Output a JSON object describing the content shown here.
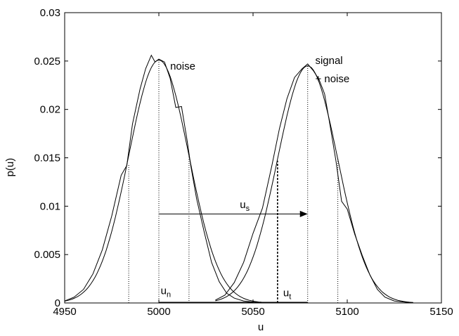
{
  "chart_data": {
    "type": "line",
    "title": "",
    "xlabel": "u",
    "ylabel": "p(u)",
    "xlim": [
      4950,
      5150
    ],
    "ylim": [
      0,
      0.03
    ],
    "xticks": [
      4950,
      5000,
      5050,
      5100,
      5150
    ],
    "yticks": [
      0,
      0.005,
      0.01,
      0.015,
      0.02,
      0.025,
      0.03
    ],
    "xtick_labels": [
      "4950",
      "5000",
      "5050",
      "5100",
      "5150"
    ],
    "ytick_labels": [
      "0",
      "0.005",
      "0.01",
      "0.015",
      "0.02",
      "0.025",
      "0.03"
    ],
    "grid": false,
    "series": [
      {
        "name": "",
        "style": "gaussian-fit",
        "mean": 5000,
        "sigma": 16,
        "peak": 0.0251,
        "x_range": [
          4950,
          5055
        ]
      },
      {
        "name": "",
        "style": "empirical",
        "x": [
          4950,
          4955,
          4960,
          4965,
          4970,
          4975,
          4980,
          4983,
          4986,
          4990,
          4993,
          4996,
          4998,
          5000,
          5003,
          5006,
          5009,
          5012,
          5015,
          5017,
          5020,
          5024,
          5028,
          5032,
          5036,
          5040,
          5045,
          5050,
          5055
        ],
        "y": [
          0.0002,
          0.0006,
          0.0014,
          0.003,
          0.0055,
          0.009,
          0.0132,
          0.0142,
          0.0185,
          0.0221,
          0.0242,
          0.0256,
          0.0249,
          0.0252,
          0.0249,
          0.0232,
          0.0202,
          0.0203,
          0.0168,
          0.0141,
          0.0108,
          0.0074,
          0.0042,
          0.0022,
          0.001,
          0.0005,
          0.0002,
          0.0001,
          0.0
        ]
      },
      {
        "name": "",
        "style": "gaussian-fit",
        "mean": 5079,
        "sigma": 16,
        "peak": 0.0245,
        "x_range": [
          5030,
          5135
        ]
      },
      {
        "name": "",
        "style": "empirical",
        "x": [
          5030,
          5035,
          5040,
          5045,
          5050,
          5055,
          5060,
          5064,
          5068,
          5072,
          5076,
          5079,
          5082,
          5085,
          5088,
          5091,
          5094,
          5097,
          5100,
          5104,
          5108,
          5112,
          5116,
          5120,
          5125,
          5130,
          5135
        ],
        "y": [
          0.0003,
          0.0008,
          0.0021,
          0.0042,
          0.0072,
          0.0098,
          0.0142,
          0.018,
          0.0211,
          0.0233,
          0.0242,
          0.0247,
          0.024,
          0.0231,
          0.0216,
          0.0182,
          0.0147,
          0.0105,
          0.0097,
          0.0071,
          0.0049,
          0.0029,
          0.0014,
          0.0006,
          0.0002,
          0.0001,
          0.0
        ]
      }
    ],
    "vertical_lines": [
      {
        "x": 4984,
        "y": 0.0143,
        "style": "dotted"
      },
      {
        "x": 5000,
        "y": 0.0251,
        "style": "dotted"
      },
      {
        "x": 5016,
        "y": 0.0152,
        "style": "dotted"
      },
      {
        "x": 5063,
        "y": 0.0147,
        "style": "dashed"
      },
      {
        "x": 5079,
        "y": 0.0245,
        "style": "dotted"
      },
      {
        "x": 5095,
        "y": 0.0149,
        "style": "dotted"
      }
    ],
    "arrow": {
      "x_start": 5000,
      "x_end": 5079,
      "y": 0.0092
    },
    "baseline_segment": {
      "x_start": 5000,
      "x_end": 5079,
      "y": 5e-05
    },
    "annotations": [
      {
        "text": "noise",
        "x": 5006,
        "y": 0.0241,
        "anchor": "start"
      },
      {
        "text": "signal",
        "x": 5083,
        "y": 0.0247,
        "anchor": "start"
      },
      {
        "text": "+ noise",
        "x": 5083,
        "y": 0.0228,
        "anchor": "start"
      }
    ],
    "sub_annotations": [
      {
        "base": "u",
        "sub": "s",
        "x": 5043,
        "y": 0.0098
      },
      {
        "base": "u",
        "sub": "n",
        "x": 5001,
        "y": 0.0009
      },
      {
        "base": "u",
        "sub": "t",
        "x": 5066,
        "y": 0.0007
      }
    ]
  }
}
